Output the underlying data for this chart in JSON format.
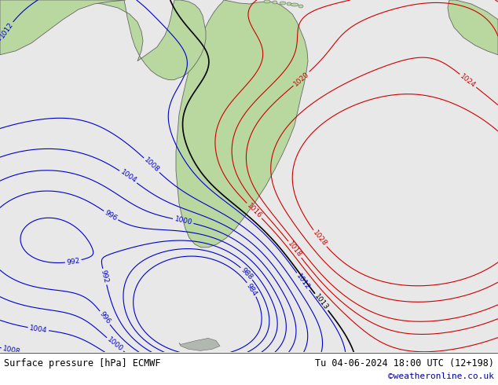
{
  "title_left": "Surface pressure [hPa] ECMWF",
  "title_right": "Tu 04-06-2024 18:00 UTC (12+198)",
  "copyright": "©weatheronline.co.uk",
  "bg_color": "#e8e8e8",
  "land_color": "#b8d8a0",
  "text_color_black": "#000000",
  "text_color_blue": "#0000cc",
  "text_color_red": "#cc0000",
  "bottom_bg": "#ffffff",
  "figsize": [
    6.34,
    4.9
  ],
  "dpi": 100,
  "levels_blue": [
    984,
    988,
    992,
    996,
    1000,
    1004,
    1008,
    1012
  ],
  "levels_black": [
    1013
  ],
  "levels_red": [
    1016,
    1018,
    1020,
    1024,
    1028
  ],
  "all_levels": [
    984,
    988,
    992,
    996,
    1000,
    1004,
    1008,
    1012,
    1013,
    1016,
    1018,
    1020,
    1024,
    1028
  ]
}
